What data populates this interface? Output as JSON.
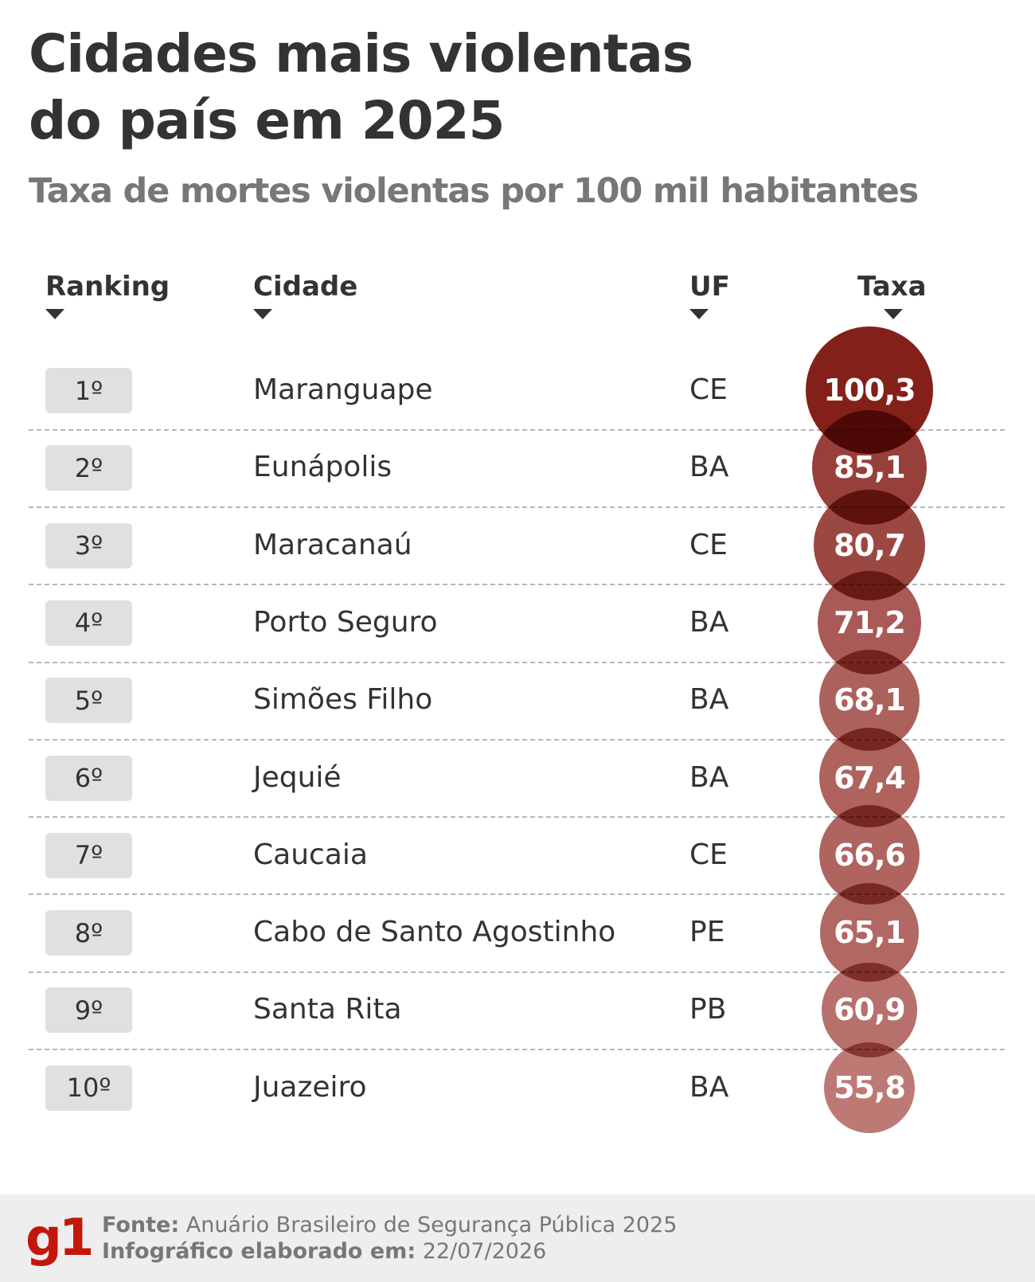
{
  "title": {
    "line1": "Cidades mais violentas",
    "line2": "do país em 2025"
  },
  "subtitle": "Taxa de mortes violentas por 100 mil habitantes",
  "columns": {
    "ranking": "Ranking",
    "cidade": "Cidade",
    "uf": "UF",
    "taxa": "Taxa"
  },
  "chart_data": {
    "type": "table",
    "value_column": "Taxa",
    "rows": [
      {
        "rank": "1º",
        "city": "Maranguape",
        "uf": "CE",
        "value": 100.3,
        "label": "100,3"
      },
      {
        "rank": "2º",
        "city": "Eunápolis",
        "uf": "BA",
        "value": 85.1,
        "label": "85,1"
      },
      {
        "rank": "3º",
        "city": "Maracanaú",
        "uf": "CE",
        "value": 80.7,
        "label": "80,7"
      },
      {
        "rank": "4º",
        "city": "Porto Seguro",
        "uf": "BA",
        "value": 71.2,
        "label": "71,2"
      },
      {
        "rank": "5º",
        "city": "Simões Filho",
        "uf": "BA",
        "value": 68.1,
        "label": "68,1"
      },
      {
        "rank": "6º",
        "city": "Jequié",
        "uf": "BA",
        "value": 67.4,
        "label": "67,4"
      },
      {
        "rank": "7º",
        "city": "Caucaia",
        "uf": "CE",
        "value": 66.6,
        "label": "66,6"
      },
      {
        "rank": "8º",
        "city": "Cabo de Santo Agostinho",
        "uf": "PE",
        "value": 65.1,
        "label": "65,1"
      },
      {
        "rank": "9º",
        "city": "Santa Rita",
        "uf": "PB",
        "value": 60.9,
        "label": "60,9"
      },
      {
        "rank": "10º",
        "city": "Juazeiro",
        "uf": "BA",
        "value": 55.8,
        "label": "55,8"
      }
    ],
    "colors": {
      "max": "#7a0f09",
      "min": "#b8706b"
    }
  },
  "footer": {
    "logo": "g1",
    "source_label": "Fonte:",
    "source_value": "Anuário Brasileiro de Segurança Pública 2025",
    "date_label": "Infográfico elaborado em:",
    "date_value": "22/07/2026"
  },
  "colors": {
    "logo": "#c4170c",
    "footer_bg": "#eeeeee",
    "rank_box_bg": "#e0e0e0"
  }
}
